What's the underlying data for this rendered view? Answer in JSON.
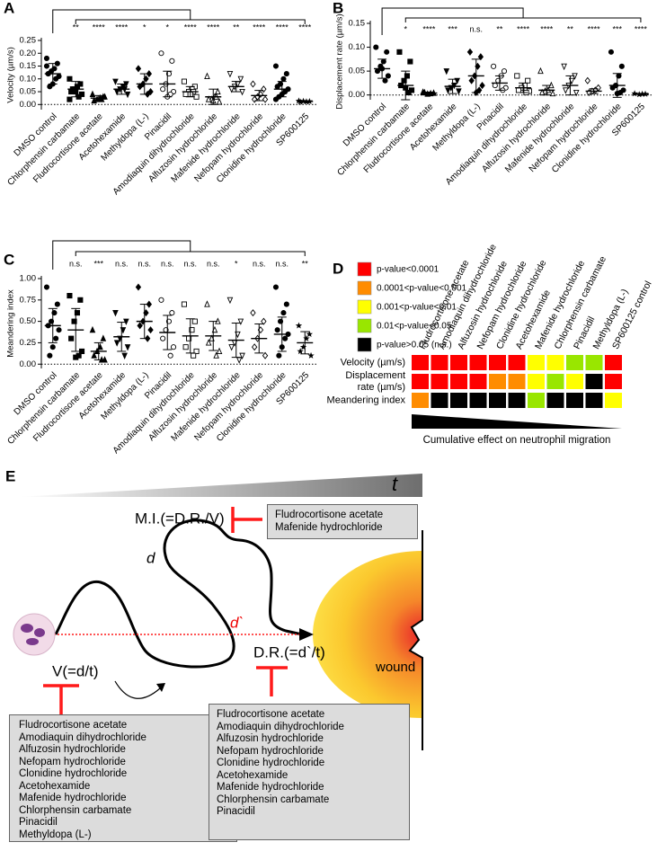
{
  "chart_data": [
    {
      "type": "dot",
      "panel": "A",
      "ylabel": "Velocity (µm/s)",
      "categories": [
        "DMSO control",
        "Chlorphensin carbamate",
        "Fludrocortisone acetate",
        "Acetohexamide",
        "Methyldopa (L-)",
        "Pinacidil",
        "Amodiaquin dihydrochloride",
        "Alfuzosin hydrochloride",
        "Mafenide hydrochloride",
        "Nefopam hydrochloride",
        "Clonidine hydrochloride",
        "SP600125"
      ],
      "markers": [
        "circle",
        "square",
        "triangle",
        "triangle-down",
        "diamond",
        "circle-open",
        "square-open",
        "triangle-open",
        "triangle-down-open",
        "diamond-open",
        "circle",
        "star"
      ],
      "ylim": [
        -0.02,
        0.25
      ],
      "yticks": [
        {
          "value": 0,
          "label": "0.00"
        },
        {
          "value": 0.05,
          "label": "0.05"
        },
        {
          "value": 0.1,
          "label": "0.10"
        },
        {
          "value": 0.15,
          "label": "0.15"
        },
        {
          "value": 0.2,
          "label": "0.20"
        },
        {
          "value": 0.25,
          "label": "0.25"
        }
      ],
      "significance": [
        null,
        "**",
        "****",
        "****",
        "*",
        "*",
        "****",
        "****",
        "**",
        "****",
        "****",
        "****"
      ],
      "means": [
        0.12,
        0.06,
        0.025,
        0.06,
        0.08,
        0.08,
        0.05,
        0.03,
        0.07,
        0.035,
        0.06,
        0.012
      ],
      "sd": [
        0.04,
        0.03,
        0.01,
        0.02,
        0.04,
        0.05,
        0.02,
        0.03,
        0.02,
        0.02,
        0.03,
        0.002
      ],
      "points": [
        [
          0.18,
          0.16,
          0.14,
          0.13,
          0.12,
          0.11,
          0.1,
          0.08,
          0.07,
          0.15
        ],
        [
          0.1,
          0.08,
          0.07,
          0.06,
          0.05,
          0.04,
          0.03,
          0.05,
          0.06,
          0.02
        ],
        [
          0.04,
          0.03,
          0.025,
          0.02,
          0.015,
          0.03,
          0.02
        ],
        [
          0.09,
          0.08,
          0.07,
          0.06,
          0.05,
          0.04,
          0.06
        ],
        [
          0.14,
          0.12,
          0.1,
          0.08,
          0.07,
          0.05,
          0.04
        ],
        [
          0.2,
          0.17,
          0.12,
          0.08,
          0.06,
          0.05,
          0.04,
          0.03
        ],
        [
          0.09,
          0.07,
          0.06,
          0.05,
          0.04,
          0.03,
          0.05,
          0.04
        ],
        [
          0.11,
          0.05,
          0.03,
          0.02,
          0.02,
          0.01,
          0.03,
          0.015
        ],
        [
          0.12,
          0.1,
          0.08,
          0.07,
          0.06,
          0.05
        ],
        [
          0.08,
          0.06,
          0.04,
          0.03,
          0.02,
          0.02
        ],
        [
          0.15,
          0.12,
          0.1,
          0.08,
          0.07,
          0.06,
          0.05,
          0.04,
          0.03,
          0.02
        ],
        [
          0.014,
          0.012,
          0.011,
          0.013,
          0.01
        ]
      ]
    },
    {
      "type": "dot",
      "panel": "B",
      "ylabel": "Displacement rate (µm/s)",
      "categories": [
        "DMSO control",
        "Chlorphensin carbamate",
        "Fludrocortisone acetate",
        "Acetohexamide",
        "Methyldopa (L-)",
        "Pinacidil",
        "Amodiaquin dihydrochloride",
        "Alfuzosin hydrochloride",
        "Mafenide hydrochloride",
        "Nefopam hydrochloride",
        "Clonidine hydrochloride",
        "SP600125"
      ],
      "markers": [
        "circle",
        "square",
        "triangle",
        "triangle-down",
        "diamond",
        "circle-open",
        "square-open",
        "triangle-open",
        "triangle-down-open",
        "diamond-open",
        "circle",
        "star"
      ],
      "ylim": [
        -0.01,
        0.15
      ],
      "yticks": [
        {
          "value": 0,
          "label": "0.00"
        },
        {
          "value": 0.05,
          "label": "0.05"
        },
        {
          "value": 0.1,
          "label": "0.10"
        },
        {
          "value": 0.15,
          "label": "0.15"
        }
      ],
      "significance": [
        null,
        "*",
        "****",
        "***",
        "n.s.",
        "**",
        "****",
        "****",
        "**",
        "****",
        "***",
        "****"
      ],
      "means": [
        0.055,
        0.02,
        0.004,
        0.018,
        0.04,
        0.025,
        0.015,
        0.01,
        0.02,
        0.008,
        0.02,
        0.002
      ],
      "sd": [
        0.02,
        0.03,
        0.002,
        0.015,
        0.035,
        0.015,
        0.01,
        0.01,
        0.02,
        0.005,
        0.025,
        0.001
      ],
      "points": [
        [
          0.1,
          0.09,
          0.07,
          0.06,
          0.05,
          0.04,
          0.03,
          0.055
        ],
        [
          0.09,
          0.07,
          0.04,
          0.03,
          0.02,
          0.01,
          0.005,
          0.015
        ],
        [
          0.006,
          0.004,
          0.003,
          0.002,
          0.005
        ],
        [
          0.05,
          0.03,
          0.02,
          0.015,
          0.01,
          0.008
        ],
        [
          0.09,
          0.08,
          0.06,
          0.04,
          0.03,
          0.02,
          0.01,
          0.005
        ],
        [
          0.06,
          0.05,
          0.04,
          0.03,
          0.02,
          0.015,
          0.01
        ],
        [
          0.04,
          0.03,
          0.02,
          0.015,
          0.01,
          0.008,
          0.005
        ],
        [
          0.05,
          0.02,
          0.01,
          0.008,
          0.005,
          0.003
        ],
        [
          0.06,
          0.04,
          0.03,
          0.02,
          0.01,
          0.005
        ],
        [
          0.03,
          0.015,
          0.01,
          0.008,
          0.005
        ],
        [
          0.09,
          0.06,
          0.04,
          0.02,
          0.015,
          0.01,
          0.005,
          0.003
        ],
        [
          0.003,
          0.002,
          0.002,
          0.001
        ]
      ]
    },
    {
      "type": "dot",
      "panel": "C",
      "ylabel": "Meandering index",
      "categories": [
        "DMSO control",
        "Chlorphensin carbamate",
        "Fludrocortisone acetate",
        "Acetohexamide",
        "Methyldopa (L-)",
        "Pinacidil",
        "Amodiaquin dihydrochloride",
        "Alfuzosin hydrochloride",
        "Mafenide hydrochloride",
        "Nefopam hydrochloride",
        "Clonidine hydrochloride",
        "SP600125"
      ],
      "markers": [
        "circle",
        "square",
        "triangle",
        "triangle-down",
        "diamond",
        "circle-open",
        "square-open",
        "triangle-open",
        "triangle-down-open",
        "diamond-open",
        "circle",
        "star"
      ],
      "ylim": [
        -0.05,
        1.0
      ],
      "yticks": [
        {
          "value": 0,
          "label": "0.00"
        },
        {
          "value": 0.25,
          "label": "0.25"
        },
        {
          "value": 0.5,
          "label": "0.50"
        },
        {
          "value": 0.75,
          "label": "0.75"
        },
        {
          "value": 1,
          "label": "1.00"
        }
      ],
      "significance": [
        null,
        "n.s.",
        "***",
        "n.s.",
        "n.s.",
        "n.s.",
        "n.s.",
        "n.s.",
        "*",
        "n.s.",
        "n.s.",
        "**"
      ],
      "means": [
        0.45,
        0.4,
        0.15,
        0.32,
        0.5,
        0.37,
        0.33,
        0.33,
        0.28,
        0.3,
        0.35,
        0.25
      ],
      "sd": [
        0.2,
        0.25,
        0.1,
        0.17,
        0.2,
        0.2,
        0.2,
        0.17,
        0.2,
        0.17,
        0.2,
        0.13
      ],
      "points": [
        [
          0.9,
          0.7,
          0.6,
          0.5,
          0.45,
          0.4,
          0.3,
          0.2,
          0.1
        ],
        [
          0.8,
          0.75,
          0.6,
          0.5,
          0.3,
          0.15,
          0.1,
          0.08
        ],
        [
          0.4,
          0.3,
          0.2,
          0.15,
          0.1,
          0.05,
          0.05
        ],
        [
          0.6,
          0.5,
          0.4,
          0.3,
          0.25,
          0.2,
          0.1
        ],
        [
          0.9,
          0.7,
          0.6,
          0.5,
          0.45,
          0.4,
          0.3
        ],
        [
          0.75,
          0.6,
          0.5,
          0.4,
          0.3,
          0.2,
          0.1
        ],
        [
          0.7,
          0.5,
          0.4,
          0.3,
          0.2,
          0.15,
          0.1
        ],
        [
          0.7,
          0.5,
          0.4,
          0.3,
          0.25,
          0.15,
          0.1
        ],
        [
          0.75,
          0.5,
          0.35,
          0.25,
          0.2,
          0.1,
          0.05
        ],
        [
          0.6,
          0.5,
          0.4,
          0.3,
          0.2,
          0.1
        ],
        [
          0.9,
          0.7,
          0.6,
          0.5,
          0.4,
          0.35,
          0.3,
          0.2,
          0.1
        ],
        [
          0.45,
          0.35,
          0.3,
          0.2,
          0.15,
          0.1
        ]
      ]
    },
    {
      "type": "heatmap",
      "panel": "D",
      "legend": [
        {
          "label": "p-value<0.0001",
          "color": "#ff0000"
        },
        {
          "label": "0.0001<p-value<0.001",
          "color": "#ff8c00"
        },
        {
          "label": "0.001<p-value<0.01",
          "color": "#ffff00"
        },
        {
          "label": "0.01<p-value<0.05",
          "color": "#99e600"
        },
        {
          "label": "p-value>0.05 (n.s.)",
          "color": "#000000"
        }
      ],
      "columns": [
        "Fludrocortisone acetate",
        "Amodiaquin dihydrochloride",
        "Alfuzosin hydrochloride",
        "Nefopam hydrochloride",
        "Clonidine hydrochloride",
        "Acetohexamide",
        "Mafenide hydrochloride",
        "Chlorphensin carbamate",
        "Pinacidil",
        "Methyldopa (L-)",
        "SP600125 control"
      ],
      "rows": [
        "Velocity (µm/s)",
        "Displacement rate (µm/s)",
        "Meandering index"
      ],
      "values": [
        [
          0,
          0,
          0,
          0,
          0,
          0,
          2,
          2,
          3,
          3,
          0
        ],
        [
          0,
          0,
          0,
          0,
          1,
          1,
          2,
          3,
          2,
          4,
          0
        ],
        [
          1,
          4,
          4,
          4,
          4,
          4,
          3,
          4,
          4,
          4,
          2
        ]
      ],
      "xlabel": "Cumulative effect on neutrophil migration"
    }
  ],
  "diagram": {
    "panel": "E",
    "time": "t",
    "mi": "M.I.(=D.R./V)",
    "mi_inhibitors": [
      "Fludrocortisone acetate",
      "Mafenide hydrochloride"
    ],
    "distance": "d",
    "displacement": "d`",
    "dr": "D.R.(=d`/t)",
    "wound": "wound",
    "v": "V(=d/t)",
    "v_inhibitors": [
      "Fludrocortisone acetate",
      "Amodiaquin dihydrochloride",
      "Alfuzosin hydrochloride",
      "Nefopam hydrochloride",
      "Clonidine hydrochloride",
      "Acetohexamide",
      "Mafenide hydrochloride",
      "Chlorphensin carbamate",
      "Pinacidil",
      "Methyldopa (L-)"
    ],
    "dr_inhibitors": [
      "Fludrocortisone acetate",
      "Amodiaquin dihydrochloride",
      "Alfuzosin hydrochloride",
      "Nefopam hydrochloride",
      "Clonidine hydrochloride",
      "Acetohexamide",
      "Mafenide hydrochloride",
      "Chlorphensin carbamate",
      "Pinacidil"
    ]
  }
}
